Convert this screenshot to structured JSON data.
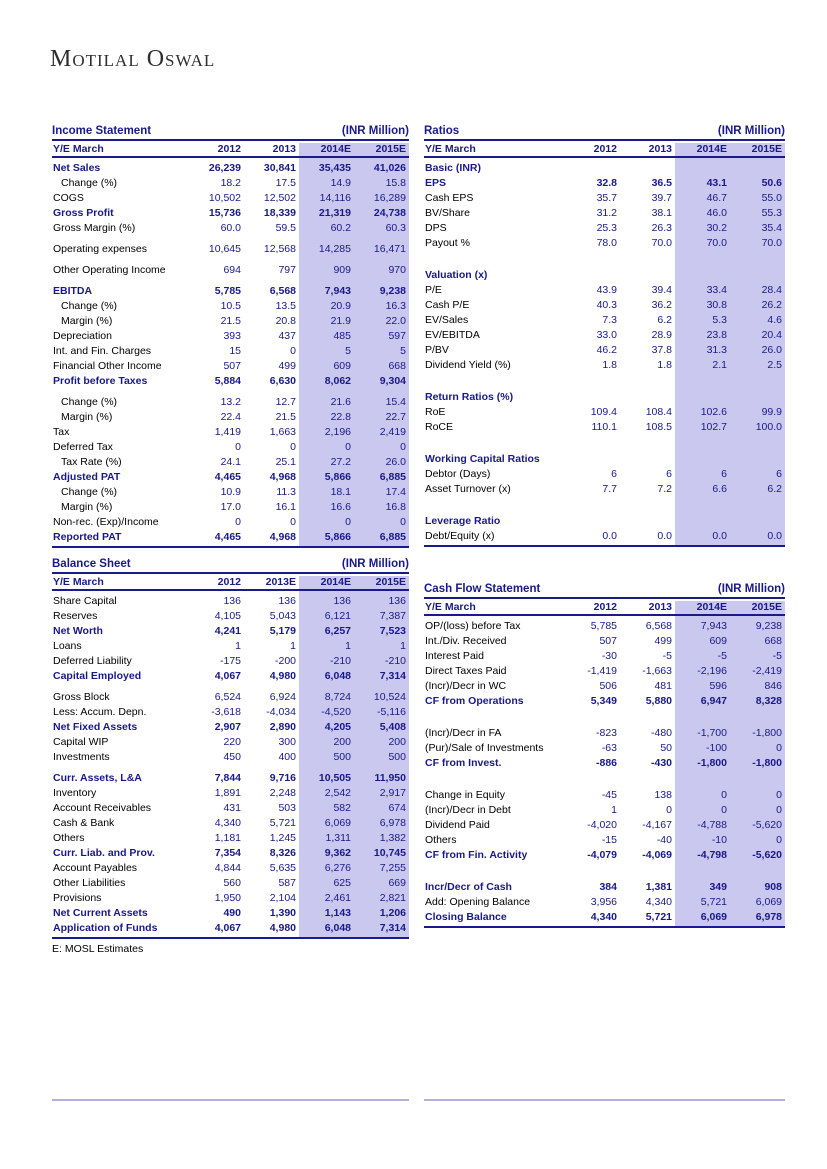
{
  "logo": "Motilal Oswal",
  "footnote": "E: MOSL Estimates",
  "colors": {
    "navy": "#191989",
    "estimate_highlight": "#cac8ef",
    "bottom_rule": "#b6aedd"
  },
  "tables": {
    "income_statement": {
      "title": "Income Statement",
      "unit": "(INR Million)",
      "col_header": "Y/E March",
      "years": [
        "2012",
        "2013",
        "2014E",
        "2015E"
      ],
      "rows": [
        {
          "label": "Net Sales",
          "style": "head",
          "values": [
            "26,239",
            "30,841",
            "35,435",
            "41,026"
          ]
        },
        {
          "label": "Change (%)",
          "style": "indent",
          "values": [
            "18.2",
            "17.5",
            "14.9",
            "15.8"
          ]
        },
        {
          "label": "COGS",
          "style": "normal",
          "values": [
            "10,502",
            "12,502",
            "14,116",
            "16,289"
          ]
        },
        {
          "label": "Gross Profit",
          "style": "head",
          "values": [
            "15,736",
            "18,339",
            "21,319",
            "24,738"
          ]
        },
        {
          "label": "Gross Margin (%)",
          "style": "normal",
          "values": [
            "60.0",
            "59.5",
            "60.2",
            "60.3"
          ]
        },
        {
          "label": "Operating expenses",
          "style": "normal",
          "gap": "sm",
          "values": [
            "10,645",
            "12,568",
            "14,285",
            "16,471"
          ]
        },
        {
          "label": "Other Operating Income",
          "style": "normal",
          "gap": "sm",
          "values": [
            "694",
            "797",
            "909",
            "970"
          ]
        },
        {
          "label": "EBITDA",
          "style": "head",
          "gap": "sm",
          "values": [
            "5,785",
            "6,568",
            "7,943",
            "9,238"
          ]
        },
        {
          "label": "Change (%)",
          "style": "indent",
          "values": [
            "10.5",
            "13.5",
            "20.9",
            "16.3"
          ]
        },
        {
          "label": "Margin (%)",
          "style": "indent",
          "values": [
            "21.5",
            "20.8",
            "21.9",
            "22.0"
          ]
        },
        {
          "label": "Depreciation",
          "style": "normal",
          "values": [
            "393",
            "437",
            "485",
            "597"
          ]
        },
        {
          "label": "Int. and Fin. Charges",
          "style": "normal",
          "values": [
            "15",
            "0",
            "5",
            "5"
          ]
        },
        {
          "label": "Financial Other Income",
          "style": "normal",
          "values": [
            "507",
            "499",
            "609",
            "668"
          ]
        },
        {
          "label": "Profit before Taxes",
          "style": "head",
          "values": [
            "5,884",
            "6,630",
            "8,062",
            "9,304"
          ]
        },
        {
          "label": "Change (%)",
          "style": "indent",
          "gap": "sm",
          "values": [
            "13.2",
            "12.7",
            "21.6",
            "15.4"
          ]
        },
        {
          "label": "Margin (%)",
          "style": "indent",
          "values": [
            "22.4",
            "21.5",
            "22.8",
            "22.7"
          ]
        },
        {
          "label": "Tax",
          "style": "normal",
          "values": [
            "1,419",
            "1,663",
            "2,196",
            "2,419"
          ]
        },
        {
          "label": "Deferred Tax",
          "style": "normal",
          "values": [
            "0",
            "0",
            "0",
            "0"
          ]
        },
        {
          "label": "Tax Rate (%)",
          "style": "indent",
          "values": [
            "24.1",
            "25.1",
            "27.2",
            "26.0"
          ]
        },
        {
          "label": "Adjusted PAT",
          "style": "head",
          "values": [
            "4,465",
            "4,968",
            "5,866",
            "6,885"
          ]
        },
        {
          "label": "Change (%)",
          "style": "indent",
          "values": [
            "10.9",
            "11.3",
            "18.1",
            "17.4"
          ]
        },
        {
          "label": "Margin (%)",
          "style": "indent",
          "values": [
            "17.0",
            "16.1",
            "16.6",
            "16.8"
          ]
        },
        {
          "label": "Non-rec. (Exp)/Income",
          "style": "normal",
          "values": [
            "0",
            "0",
            "0",
            "0"
          ]
        },
        {
          "label": "Reported PAT",
          "style": "head",
          "values": [
            "4,465",
            "4,968",
            "5,866",
            "6,885"
          ]
        }
      ]
    },
    "ratios": {
      "title": "Ratios",
      "unit": "(INR Million)",
      "col_header": "Y/E March",
      "years": [
        "2012",
        "2013",
        "2014E",
        "2015E"
      ],
      "rows": [
        {
          "label": "Basic (INR)",
          "style": "section",
          "values": [
            "",
            "",
            "",
            ""
          ]
        },
        {
          "label": "EPS",
          "style": "head",
          "values": [
            "32.8",
            "36.5",
            "43.1",
            "50.6"
          ]
        },
        {
          "label": "Cash EPS",
          "style": "normal",
          "values": [
            "35.7",
            "39.7",
            "46.7",
            "55.0"
          ]
        },
        {
          "label": "BV/Share",
          "style": "normal",
          "values": [
            "31.2",
            "38.1",
            "46.0",
            "55.3"
          ]
        },
        {
          "label": "DPS",
          "style": "normal",
          "values": [
            "25.3",
            "26.3",
            "30.2",
            "35.4"
          ]
        },
        {
          "label": "Payout %",
          "style": "normal",
          "values": [
            "78.0",
            "70.0",
            "70.0",
            "70.0"
          ]
        },
        {
          "label": "Valuation (x)",
          "style": "section",
          "gap": "lg",
          "values": [
            "",
            "",
            "",
            ""
          ]
        },
        {
          "label": "P/E",
          "style": "normal",
          "values": [
            "43.9",
            "39.4",
            "33.4",
            "28.4"
          ]
        },
        {
          "label": "Cash P/E",
          "style": "normal",
          "values": [
            "40.3",
            "36.2",
            "30.8",
            "26.2"
          ]
        },
        {
          "label": "EV/Sales",
          "style": "normal",
          "values": [
            "7.3",
            "6.2",
            "5.3",
            "4.6"
          ]
        },
        {
          "label": "EV/EBITDA",
          "style": "normal",
          "values": [
            "33.0",
            "28.9",
            "23.8",
            "20.4"
          ]
        },
        {
          "label": "P/BV",
          "style": "normal",
          "values": [
            "46.2",
            "37.8",
            "31.3",
            "26.0"
          ]
        },
        {
          "label": "Dividend Yield (%)",
          "style": "normal",
          "values": [
            "1.8",
            "1.8",
            "2.1",
            "2.5"
          ]
        },
        {
          "label": "Return Ratios (%)",
          "style": "section",
          "gap": "lg",
          "values": [
            "",
            "",
            "",
            ""
          ]
        },
        {
          "label": "RoE",
          "style": "normal",
          "values": [
            "109.4",
            "108.4",
            "102.6",
            "99.9"
          ]
        },
        {
          "label": "RoCE",
          "style": "normal",
          "values": [
            "110.1",
            "108.5",
            "102.7",
            "100.0"
          ]
        },
        {
          "label": "Working Capital Ratios",
          "style": "section",
          "gap": "lg",
          "values": [
            "",
            "",
            "",
            ""
          ]
        },
        {
          "label": "Debtor (Days)",
          "style": "normal",
          "values": [
            "6",
            "6",
            "6",
            "6"
          ]
        },
        {
          "label": "Asset Turnover (x)",
          "style": "normal",
          "values": [
            "7.7",
            "7.2",
            "6.6",
            "6.2"
          ]
        },
        {
          "label": "Leverage Ratio",
          "style": "section",
          "gap": "lg",
          "values": [
            "",
            "",
            "",
            ""
          ]
        },
        {
          "label": "Debt/Equity (x)",
          "style": "normal",
          "values": [
            "0.0",
            "0.0",
            "0.0",
            "0.0"
          ]
        }
      ]
    },
    "balance_sheet": {
      "title": "Balance Sheet",
      "unit": "(INR Million)",
      "col_header": "Y/E March",
      "years": [
        "2012",
        "2013E",
        "2014E",
        "2015E"
      ],
      "rows": [
        {
          "label": "Share Capital",
          "style": "normal",
          "values": [
            "136",
            "136",
            "136",
            "136"
          ]
        },
        {
          "label": "Reserves",
          "style": "normal",
          "values": [
            "4,105",
            "5,043",
            "6,121",
            "7,387"
          ]
        },
        {
          "label": "Net Worth",
          "style": "head",
          "values": [
            "4,241",
            "5,179",
            "6,257",
            "7,523"
          ]
        },
        {
          "label": "Loans",
          "style": "normal",
          "values": [
            "1",
            "1",
            "1",
            "1"
          ]
        },
        {
          "label": "Deferred Liability",
          "style": "normal",
          "values": [
            "-175",
            "-200",
            "-210",
            "-210"
          ]
        },
        {
          "label": "Capital Employed",
          "style": "head",
          "values": [
            "4,067",
            "4,980",
            "6,048",
            "7,314"
          ]
        },
        {
          "label": "Gross Block",
          "style": "normal",
          "gap": "sm",
          "values": [
            "6,524",
            "6,924",
            "8,724",
            "10,524"
          ]
        },
        {
          "label": "Less: Accum. Depn.",
          "style": "normal",
          "values": [
            "-3,618",
            "-4,034",
            "-4,520",
            "-5,116"
          ]
        },
        {
          "label": "Net Fixed Assets",
          "style": "head",
          "values": [
            "2,907",
            "2,890",
            "4,205",
            "5,408"
          ]
        },
        {
          "label": "Capital WIP",
          "style": "normal",
          "values": [
            "220",
            "300",
            "200",
            "200"
          ]
        },
        {
          "label": "Investments",
          "style": "normal",
          "values": [
            "450",
            "400",
            "500",
            "500"
          ]
        },
        {
          "label": "Curr. Assets, L&A",
          "style": "head",
          "gap": "sm",
          "values": [
            "7,844",
            "9,716",
            "10,505",
            "11,950"
          ]
        },
        {
          "label": "Inventory",
          "style": "normal",
          "values": [
            "1,891",
            "2,248",
            "2,542",
            "2,917"
          ]
        },
        {
          "label": "Account Receivables",
          "style": "normal",
          "values": [
            "431",
            "503",
            "582",
            "674"
          ]
        },
        {
          "label": "Cash & Bank",
          "style": "normal",
          "values": [
            "4,340",
            "5,721",
            "6,069",
            "6,978"
          ]
        },
        {
          "label": "Others",
          "style": "normal",
          "values": [
            "1,181",
            "1,245",
            "1,311",
            "1,382"
          ]
        },
        {
          "label": "Curr. Liab. and Prov.",
          "style": "head",
          "values": [
            "7,354",
            "8,326",
            "9,362",
            "10,745"
          ]
        },
        {
          "label": "Account Payables",
          "style": "normal",
          "values": [
            "4,844",
            "5,635",
            "6,276",
            "7,255"
          ]
        },
        {
          "label": "Other Liabilities",
          "style": "normal",
          "values": [
            "560",
            "587",
            "625",
            "669"
          ]
        },
        {
          "label": "Provisions",
          "style": "normal",
          "values": [
            "1,950",
            "2,104",
            "2,461",
            "2,821"
          ]
        },
        {
          "label": "Net Current Assets",
          "style": "head",
          "values": [
            "490",
            "1,390",
            "1,143",
            "1,206"
          ]
        },
        {
          "label": "Application of Funds",
          "style": "head",
          "values": [
            "4,067",
            "4,980",
            "6,048",
            "7,314"
          ]
        }
      ]
    },
    "cash_flow": {
      "title": "Cash Flow Statement",
      "unit": "(INR Million)",
      "col_header": "Y/E March",
      "years": [
        "2012",
        "2013",
        "2014E",
        "2015E"
      ],
      "rows": [
        {
          "label": "OP/(loss) before Tax",
          "style": "normal",
          "values": [
            "5,785",
            "6,568",
            "7,943",
            "9,238"
          ]
        },
        {
          "label": "Int./Div. Received",
          "style": "normal",
          "values": [
            "507",
            "499",
            "609",
            "668"
          ]
        },
        {
          "label": "Interest Paid",
          "style": "normal",
          "values": [
            "-30",
            "-5",
            "-5",
            "-5"
          ]
        },
        {
          "label": "Direct Taxes Paid",
          "style": "normal",
          "values": [
            "-1,419",
            "-1,663",
            "-2,196",
            "-2,419"
          ]
        },
        {
          "label": "(Incr)/Decr in WC",
          "style": "normal",
          "values": [
            "506",
            "481",
            "596",
            "846"
          ]
        },
        {
          "label": "CF from Operations",
          "style": "head",
          "values": [
            "5,349",
            "5,880",
            "6,947",
            "8,328"
          ]
        },
        {
          "label": "(Incr)/Decr in FA",
          "style": "normal",
          "gap": "lg",
          "values": [
            "-823",
            "-480",
            "-1,700",
            "-1,800"
          ]
        },
        {
          "label": "(Pur)/Sale of Investments",
          "style": "normal",
          "values": [
            "-63",
            "50",
            "-100",
            "0"
          ]
        },
        {
          "label": "CF from Invest.",
          "style": "head",
          "values": [
            "-886",
            "-430",
            "-1,800",
            "-1,800"
          ]
        },
        {
          "label": "Change in Equity",
          "style": "normal",
          "gap": "lg",
          "values": [
            "-45",
            "138",
            "0",
            "0"
          ]
        },
        {
          "label": "(Incr)/Decr in Debt",
          "style": "normal",
          "values": [
            "1",
            "0",
            "0",
            "0"
          ]
        },
        {
          "label": "Dividend Paid",
          "style": "normal",
          "values": [
            "-4,020",
            "-4,167",
            "-4,788",
            "-5,620"
          ]
        },
        {
          "label": "Others",
          "style": "normal",
          "values": [
            "-15",
            "-40",
            "-10",
            "0"
          ]
        },
        {
          "label": "CF from Fin. Activity",
          "style": "head",
          "values": [
            "-4,079",
            "-4,069",
            "-4,798",
            "-5,620"
          ]
        },
        {
          "label": "Incr/Decr of Cash",
          "style": "head",
          "gap": "lg",
          "values": [
            "384",
            "1,381",
            "349",
            "908"
          ]
        },
        {
          "label": "Add: Opening Balance",
          "style": "normal",
          "values": [
            "3,956",
            "4,340",
            "5,721",
            "6,069"
          ]
        },
        {
          "label": "Closing Balance",
          "style": "head",
          "values": [
            "4,340",
            "5,721",
            "6,069",
            "6,978"
          ]
        }
      ]
    }
  }
}
